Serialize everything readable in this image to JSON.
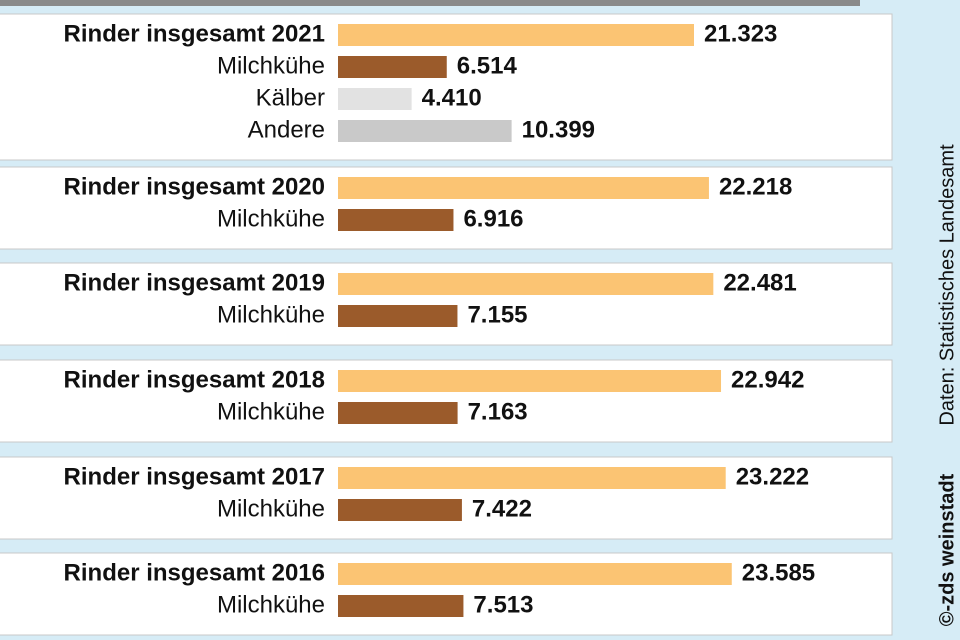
{
  "chart_data": {
    "type": "grouped-hbar",
    "source": "Daten: Statistisches Landesamt",
    "credit": "©-zds weinstadt",
    "groups": [
      {
        "categories": [
          "Rinder insgesamt 2021",
          "Milchkühe",
          "Kälber",
          "Andere"
        ],
        "values": [
          21323,
          6514,
          4410,
          10399
        ],
        "value_labels": [
          "21.323",
          "6.514",
          "4.410",
          "10.399"
        ],
        "colors": [
          "#fbc473",
          "#9b5b2b",
          "#e2e2e2",
          "#c9c9c9"
        ]
      },
      {
        "categories": [
          "Rinder insgesamt 2020",
          "Milchkühe"
        ],
        "values": [
          22218,
          6916
        ],
        "value_labels": [
          "22.218",
          "6.916"
        ],
        "colors": [
          "#fbc473",
          "#9b5b2b"
        ]
      },
      {
        "categories": [
          "Rinder insgesamt 2019",
          "Milchkühe"
        ],
        "values": [
          22481,
          7155
        ],
        "value_labels": [
          "22.481",
          "7.155"
        ],
        "colors": [
          "#fbc473",
          "#9b5b2b"
        ]
      },
      {
        "categories": [
          "Rinder insgesamt 2018",
          "Milchkühe"
        ],
        "values": [
          22942,
          7163
        ],
        "value_labels": [
          "22.942",
          "7.163"
        ],
        "colors": [
          "#fbc473",
          "#9b5b2b"
        ]
      },
      {
        "categories": [
          "Rinder insgesamt 2017",
          "Milchkühe"
        ],
        "values": [
          23222,
          7422
        ],
        "value_labels": [
          "23.222",
          "7.422"
        ],
        "colors": [
          "#fbc473",
          "#9b5b2b"
        ]
      },
      {
        "categories": [
          "Rinder insgesamt 2016",
          "Milchkühe"
        ],
        "values": [
          23585,
          7513
        ],
        "value_labels": [
          "23.585",
          "7.513"
        ],
        "colors": [
          "#fbc473",
          "#9b5b2b"
        ]
      }
    ]
  }
}
